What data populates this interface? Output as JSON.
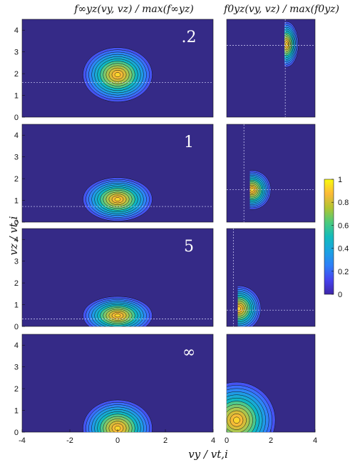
{
  "chart_data": {
    "type": "heatmap",
    "titles": {
      "left": "f∞yz(vy, vz) / max(f∞yz)",
      "right": "f0yz(vy, vz) / max(f0yz)"
    },
    "xlabel": "vy / vt,i",
    "ylabel": "vz / vt,i",
    "left_xlim": [
      -4,
      4
    ],
    "left_xticks": [
      "-4",
      "-2",
      "0",
      "2",
      "4"
    ],
    "right_xlim": [
      0,
      4
    ],
    "right_xticks": [
      "0",
      "2",
      "4"
    ],
    "ylim": [
      0,
      4.5
    ],
    "yticks": [
      "0",
      "1",
      "2",
      "3",
      "4"
    ],
    "colorbar": {
      "range": [
        0,
        1
      ],
      "ticks": [
        "0",
        "0.2",
        "0.4",
        "0.6",
        "0.8",
        "1"
      ],
      "colormap": "parula"
    },
    "rows": [
      {
        "label": ".2",
        "left_center": [
          0,
          1.95
        ],
        "left_dashed_y": 1.6,
        "right_dashed": [
          2.65,
          3.3
        ],
        "right_blob_peak": [
          2.78,
          3.35
        ]
      },
      {
        "label": "1",
        "left_center": [
          0,
          1.05
        ],
        "left_dashed_y": 0.72,
        "right_dashed": [
          0.78,
          1.5
        ],
        "right_blob_peak": [
          1.22,
          1.48
        ]
      },
      {
        "label": "5",
        "left_center": [
          0,
          0.5
        ],
        "left_dashed_y": 0.35,
        "right_dashed": [
          0.3,
          0.75
        ],
        "right_blob_peak": [
          0.62,
          0.82
        ]
      },
      {
        "label": "∞",
        "left_center": [
          0,
          0.18
        ],
        "left_dashed_y": null,
        "right_dashed": null,
        "right_blob_peak": [
          0.48,
          0.55
        ]
      }
    ]
  }
}
